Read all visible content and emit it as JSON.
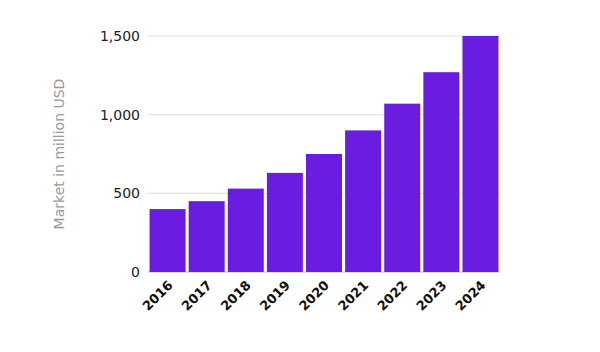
{
  "chart_data": {
    "type": "bar",
    "y_label": "Market in million USD",
    "categories": [
      "2016",
      "2017",
      "2018",
      "2019",
      "2020",
      "2021",
      "2022",
      "2023",
      "2024"
    ],
    "values": [
      400,
      450,
      530,
      630,
      750,
      900,
      1070,
      1270,
      1500
    ],
    "color": "#6a1de0",
    "ylim": [
      0,
      1500
    ],
    "yticks": [
      0,
      500,
      {
        "value": 1000,
        "label": "1,000"
      },
      {
        "value": 1500,
        "label": "1,500"
      }
    ],
    "grid": true
  }
}
